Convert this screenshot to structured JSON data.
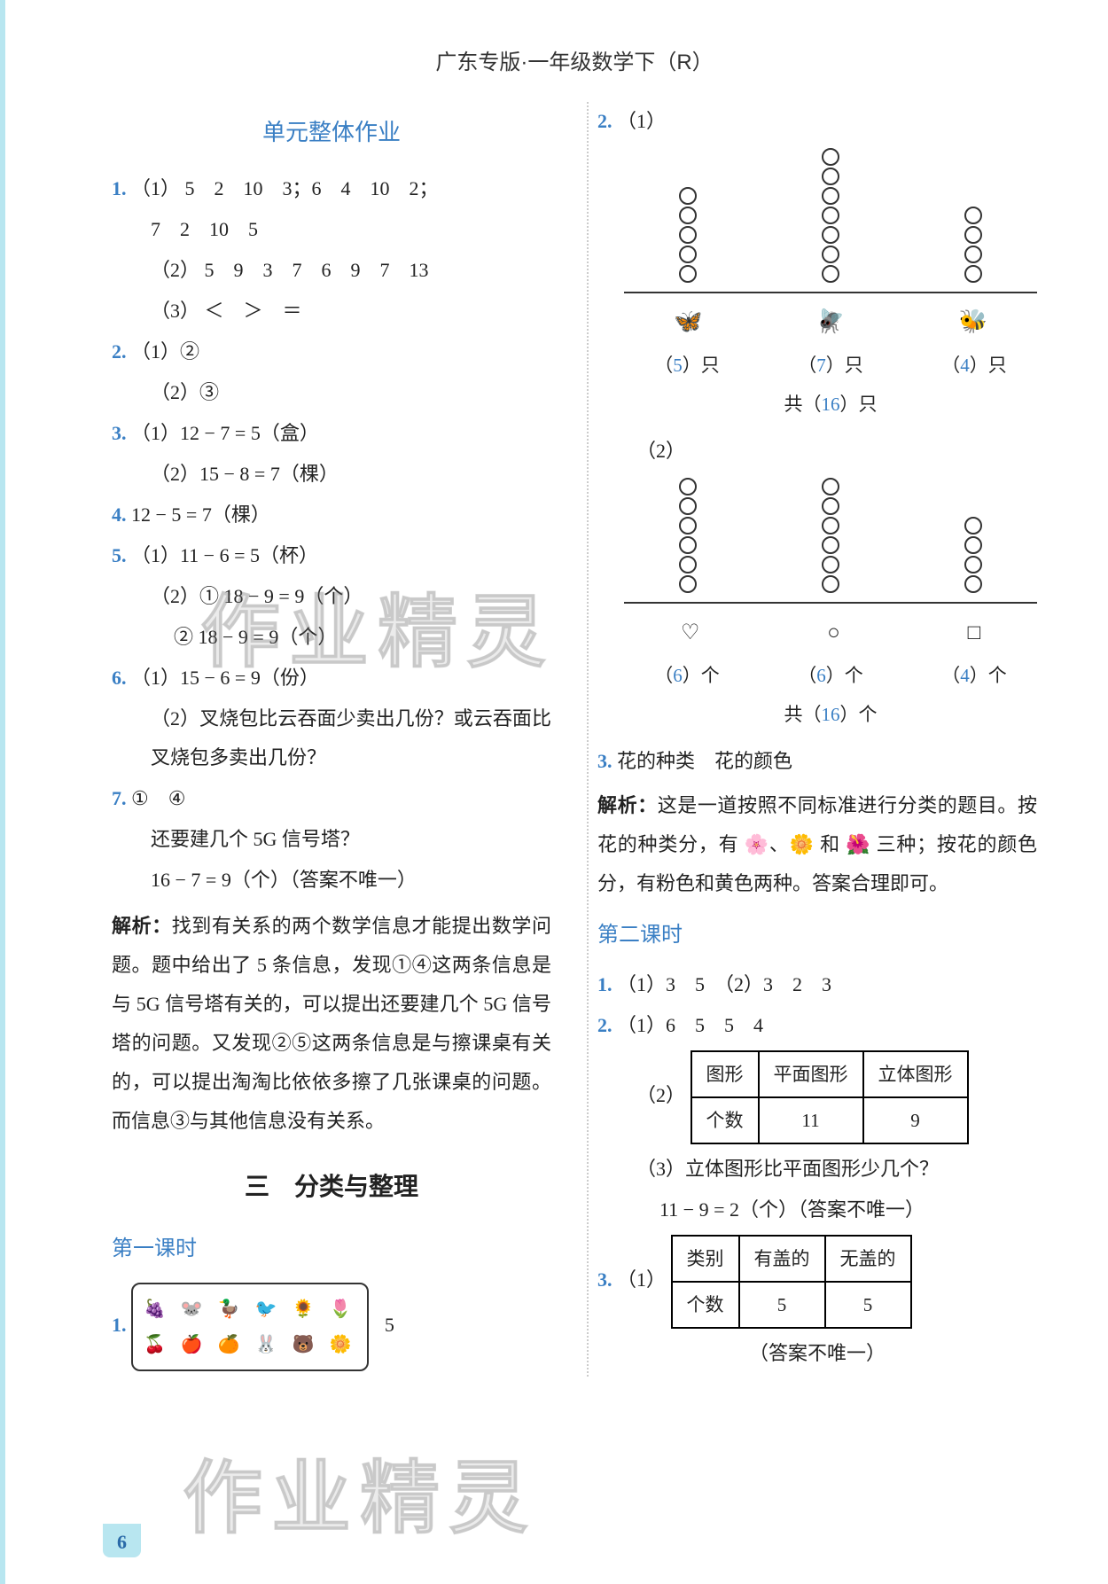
{
  "header": "广东专版·一年级数学下（R）",
  "watermark": "作业精灵",
  "page_number": "6",
  "left": {
    "unit_title": "单元整体作业",
    "q1": {
      "label": "1.",
      "p1_label": "（1）",
      "p1_line1": "5　2　10　3；6　4　10　2；",
      "p1_line2": "7　2　10　5",
      "p2_label": "（2）",
      "p2_text": "5　9　3　7　6　9　7　13",
      "p3_label": "（3）",
      "p3_text": "＜　＞　＝"
    },
    "q2": {
      "label": "2.",
      "p1": "（1）②",
      "p2": "（2）③"
    },
    "q3": {
      "label": "3.",
      "p1": "（1）12 − 7 = 5（盒）",
      "p2": "（2）15 − 8 = 7（棵）"
    },
    "q4": {
      "label": "4.",
      "text": "12 − 5 = 7（棵）"
    },
    "q5": {
      "label": "5.",
      "p1": "（1）11 − 6 = 5（杯）",
      "p2": "（2）① 18 − 9 = 9（个）",
      "p3": "② 18 − 9 = 9（个）"
    },
    "q6": {
      "label": "6.",
      "p1": "（1）15 − 6 = 9（份）",
      "p2": "（2）叉烧包比云吞面少卖出几份？或云吞面比叉烧包多卖出几份？"
    },
    "q7": {
      "label": "7.",
      "line1": "①　④",
      "line2": "还要建几个 5G 信号塔？",
      "line3": "16 − 7 = 9（个）（答案不唯一）"
    },
    "analysis_label": "解析：",
    "analysis_text": "找到有关系的两个数学信息才能提出数学问题。题中给出了 5 条信息，发现①④这两条信息是与 5G 信号塔有关的，可以提出还要建几个 5G 信号塔的问题。又发现②⑤这两条信息是与擦课桌有关的，可以提出淘淘比依依多擦了几张课桌的问题。而信息③与其他信息没有关系。",
    "section3_title": "三　分类与整理",
    "lesson1_label": "第一课时",
    "q1b": {
      "label": "1.",
      "trailing": "5"
    }
  },
  "right": {
    "q2": {
      "label": "2.",
      "part1": {
        "label": "（1）",
        "columns": [
          5,
          7,
          4
        ],
        "icons": [
          "🦋",
          "🪰",
          "🐝"
        ],
        "counts": [
          "5",
          "7",
          "4"
        ],
        "unit": "只",
        "total_prefix": "共（",
        "total_val": "16",
        "total_suffix": "）只"
      },
      "part2": {
        "label": "（2）",
        "columns": [
          6,
          6,
          4
        ],
        "shapes": [
          "heart",
          "circle",
          "square"
        ],
        "counts": [
          "6",
          "6",
          "4"
        ],
        "unit": "个",
        "total_prefix": "共（",
        "total_val": "16",
        "total_suffix": "）个"
      }
    },
    "q3_line": "花的种类　花的颜色",
    "q3_icon": "3.",
    "analysis_label": "解析：",
    "analysis_text": "这是一道按照不同标准进行分类的题目。按花的种类分，有 🌸、🌼 和 🌺 三种；按花的颜色分，有粉色和黄色两种。答案合理即可。",
    "lesson2_label": "第二课时",
    "l2q1": {
      "label": "1.",
      "text": "（1）3　5　（2）3　2　3"
    },
    "l2q2": {
      "label": "2.",
      "p1": "（1）6　5　5　4",
      "p2_label": "（2）",
      "table": {
        "headers": [
          "图形",
          "平面图形",
          "立体图形"
        ],
        "row_label": "个数",
        "values": [
          "11",
          "9"
        ]
      },
      "p3": "（3）立体图形比平面图形少几个？",
      "p3b": "11 − 9 = 2（个）（答案不唯一）"
    },
    "l2q3": {
      "label": "3.",
      "p1_label": "（1）",
      "table": {
        "headers": [
          "类别",
          "有盖的",
          "无盖的"
        ],
        "row_label": "个数",
        "values": [
          "5",
          "5"
        ]
      },
      "note": "（答案不唯一）"
    }
  }
}
